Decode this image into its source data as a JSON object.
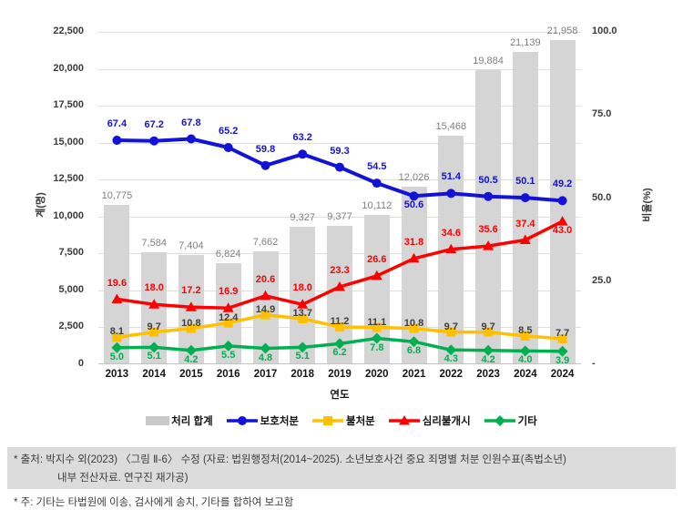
{
  "chart_data": {
    "type": "combo (bar + line)",
    "categories": [
      "2013",
      "2014",
      "2015",
      "2016",
      "2017",
      "2018",
      "2019",
      "2020",
      "2021",
      "2022",
      "2023",
      "2024",
      "2024"
    ],
    "bar_series": {
      "name": "처리 합계",
      "values": [
        "10,775",
        "7,584",
        "7,404",
        "6,824",
        "7,662",
        "9,327",
        "9,377",
        "10,112",
        "12,026",
        "15,468",
        "19,884",
        "21,139",
        "21,958"
      ],
      "color": "#d5d5d5",
      "label_color": "#7f7f7f",
      "axis": "left"
    },
    "line_series": [
      {
        "name": "보호처분",
        "marker": "circle",
        "color": "#1212d9",
        "label_color": "#1212d9",
        "axis": "right",
        "values": [
          "67.4",
          "67.2",
          "67.8",
          "65.2",
          "59.8",
          "63.2",
          "59.3",
          "54.5",
          "50.6",
          "51.4",
          "50.5",
          "50.1",
          "49.2"
        ],
        "label_side": "above",
        "label_overrides": {
          "8": "below"
        }
      },
      {
        "name": "불처분",
        "marker": "square",
        "color": "#ffc000",
        "label_color": "#3f3f3f",
        "axis": "right",
        "values": [
          "8.1",
          "9.7",
          "10.8",
          "12.4",
          "14.9",
          "13.7",
          "11.2",
          "11.1",
          "10.8",
          "9.7",
          "9.7",
          "8.5",
          "7.7"
        ],
        "label_side": "on",
        "label_overrides": {}
      },
      {
        "name": "심리불개시",
        "marker": "triangle",
        "color": "#fe0000",
        "label_color": "#fe0000",
        "axis": "right",
        "values": [
          "19.6",
          "18.0",
          "17.2",
          "16.9",
          "20.6",
          "18.0",
          "23.3",
          "26.6",
          "31.8",
          "34.6",
          "35.6",
          "37.4",
          "43.0"
        ],
        "label_side": "above",
        "label_overrides": {
          "12": "below"
        }
      },
      {
        "name": "기타",
        "marker": "diamond",
        "color": "#00b050",
        "label_color": "#00b050",
        "axis": "right",
        "values": [
          "5.0",
          "5.1",
          "4.2",
          "5.5",
          "4.8",
          "5.1",
          "6.2",
          "7.8",
          "6.8",
          "4.3",
          "4.2",
          "4.0",
          "3.9"
        ],
        "label_side": "below",
        "label_overrides": {}
      }
    ],
    "left_axis": {
      "title": "계(명)",
      "ticks": [
        "0",
        "2,500",
        "5,000",
        "7,500",
        "10,000",
        "12,500",
        "15,000",
        "17,500",
        "20,000",
        "22,500"
      ],
      "range": [
        0,
        22500
      ],
      "grid": true
    },
    "right_axis": {
      "title": "비율(%)",
      "ticks": [
        "-",
        "25.0",
        "50.0",
        "75.0",
        "100.0"
      ],
      "range": [
        0,
        100
      ],
      "grid": false
    },
    "x_axis": {
      "title": "연도"
    },
    "legend_position": "bottom"
  },
  "legend": {
    "items": [
      {
        "label": "처리 합계",
        "swatch": "bar",
        "marker": "",
        "color": "#c8c8c8"
      },
      {
        "label": "보호처분",
        "swatch": "line",
        "marker": "circle",
        "color": "#1212d9"
      },
      {
        "label": "불처분",
        "swatch": "line",
        "marker": "square",
        "color": "#ffc000"
      },
      {
        "label": "심리불개시",
        "swatch": "line",
        "marker": "triangle",
        "color": "#fe0000"
      },
      {
        "label": "기타",
        "swatch": "line",
        "marker": "diamond",
        "color": "#00b050"
      }
    ]
  },
  "footer": {
    "source_line1": "* 출처: 박지수 외(2023) 〈그림 Ⅱ-6〉 수정 (자료: 법원행정처(2014~2025). 소년보호사건 중요 죄명별 처분 인원수표(촉법소년)",
    "source_line2": "내부 전산자료. 연구진 재가공)",
    "note": "* 주: 기타는 타법원에 이송, 검사에게 송치, 기타를 합하여 보고함"
  }
}
